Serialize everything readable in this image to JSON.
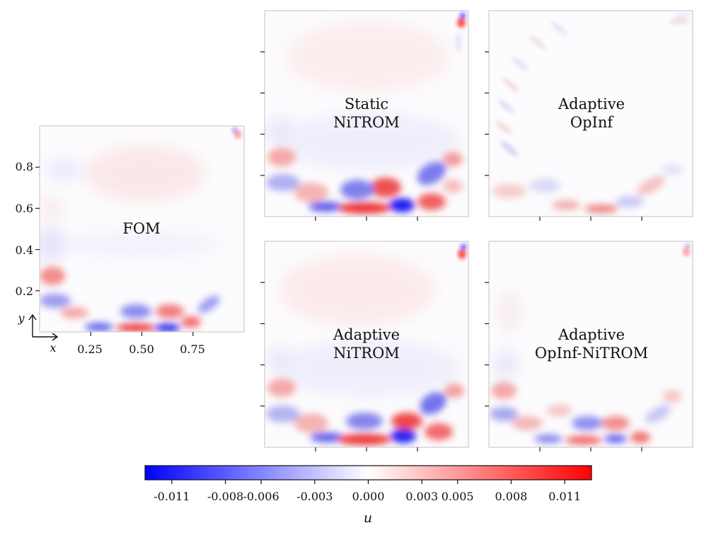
{
  "chart_data": [
    {
      "type": "heatmap",
      "panel": "FOM",
      "label": "FOM",
      "x_ticks": [
        "0.25",
        "0.50",
        "0.75"
      ],
      "y_ticks": [
        "0.2",
        "0.4",
        "0.6",
        "0.8"
      ],
      "x_axis_label": "x",
      "y_axis_label": "y",
      "xlim": [
        0,
        1
      ],
      "ylim": [
        0,
        1
      ]
    },
    {
      "type": "heatmap",
      "panel": "static-nitrom",
      "label_lines": [
        "Static",
        "NiTROM"
      ]
    },
    {
      "type": "heatmap",
      "panel": "adaptive-opinf",
      "label_lines": [
        "Adaptive",
        "OpInf"
      ]
    },
    {
      "type": "heatmap",
      "panel": "adaptive-nitrom",
      "label_lines": [
        "Adaptive",
        "NiTROM"
      ]
    },
    {
      "type": "heatmap",
      "panel": "adaptive-opinf-nitrom",
      "label_lines": [
        "Adaptive",
        "OpInf-NiTROM"
      ]
    }
  ],
  "colorbar": {
    "label": "u",
    "range": [
      -0.0125,
      0.0125
    ],
    "ticks": [
      -0.011,
      -0.008,
      -0.006,
      -0.003,
      0.0,
      0.003,
      0.005,
      0.008,
      0.011
    ],
    "tick_labels": [
      "-0.011",
      "-0.008",
      "-0.006",
      "-0.003",
      "0.000",
      "0.003",
      "0.005",
      "0.008",
      "0.011"
    ],
    "colormap": "bwr",
    "colors": {
      "low": "#0000ff",
      "mid": "#ffffff",
      "high": "#ff0000"
    }
  }
}
